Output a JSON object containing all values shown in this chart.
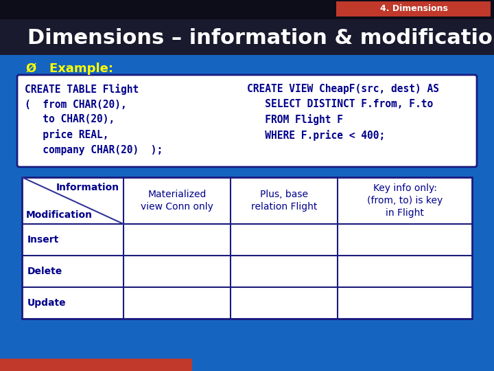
{
  "bg_color": "#1565C0",
  "top_bar_color": "#0d0d1a",
  "tab_label_color": "#C0392B",
  "tab_label_text": "4. Dimensions",
  "title_bar_color": "#1a1a2e",
  "title_text": "Dimensions – information & modification",
  "title_color": "#FFFFFF",
  "title_fontsize": 22,
  "example_label": "Ø   Example:",
  "example_color": "#FFFF00",
  "example_fontsize": 13,
  "code_box_bg": "#FFFFFF",
  "code_box_border": "#1a1a7e",
  "code_left": "CREATE TABLE Flight\n(  from CHAR(20),\n   to CHAR(20),\n   price REAL,\n   company CHAR(20)  );",
  "code_right": "CREATE VIEW CheapF(src, dest) AS\n   SELECT DISTINCT F.from, F.to\n   FROM Flight F\n   WHERE F.price < 400;",
  "code_color": "#00008B",
  "code_fontsize": 10.5,
  "table_bg": "#FFFFFF",
  "table_border": "#1a1a7e",
  "table_header_row_texts": [
    "Information",
    "Materialized\nview Conn only",
    "Plus, base\nrelation Flight",
    "Key info only:\n(from, to) is key\nin Flight"
  ],
  "table_row_labels": [
    "Modification",
    "Insert",
    "Delete",
    "Update"
  ],
  "table_text_color": "#00008B",
  "table_fontsize": 10,
  "red_bar_color": "#C0392B",
  "bottom_bar_color": "#C0392B"
}
